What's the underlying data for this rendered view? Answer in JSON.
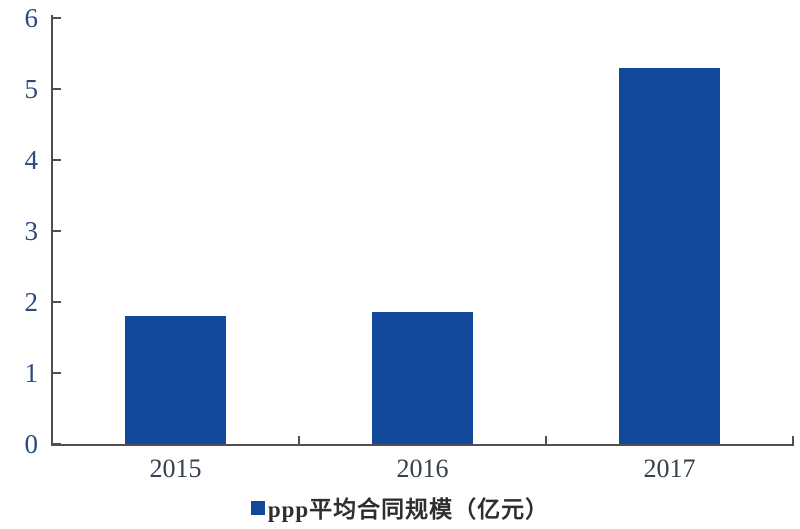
{
  "chart_data": {
    "type": "bar",
    "categories": [
      "2015",
      "2016",
      "2017"
    ],
    "values": [
      1.8,
      1.86,
      5.3
    ],
    "series_name": "ppp平均合同规模（亿元）",
    "title": "",
    "xlabel": "",
    "ylabel": "",
    "ylim": [
      0,
      6
    ],
    "yticks": [
      0,
      1,
      2,
      3,
      4,
      5,
      6
    ],
    "grid": false,
    "legend_position": "bottom-center",
    "legend_marker": "square"
  },
  "legend": {
    "label": "ppp平均合同规模（亿元）"
  },
  "colors": {
    "bar": "#14489B",
    "axis": "#4f4f4f",
    "y_tick_label": "#2a4a80",
    "x_tick_label": "#37404d",
    "legend_text": "#2e2e2e",
    "background": "#ffffff"
  }
}
